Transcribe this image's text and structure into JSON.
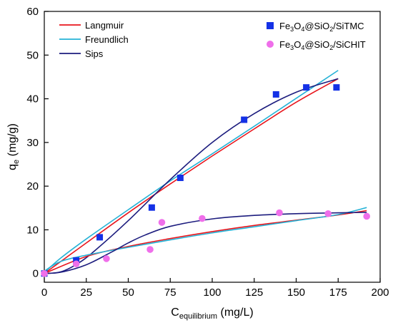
{
  "chart_data": {
    "type": "scatter",
    "xlabel": {
      "main": "C",
      "sub": "equilibrium",
      "unit": " (mg/L)"
    },
    "ylabel": {
      "main": "q",
      "sub": "e",
      "unit": " (mg/g)"
    },
    "xlim": [
      0,
      200
    ],
    "ylim": [
      -2,
      60
    ],
    "xticks": [
      0,
      25,
      50,
      75,
      100,
      125,
      150,
      175,
      200
    ],
    "yticks": [
      0,
      10,
      20,
      30,
      40,
      50,
      60
    ],
    "grid": false,
    "legend_models_position": "top-left",
    "legend_data_position": "top-right",
    "models": [
      {
        "name": "Langmuir",
        "color": "#e8141b"
      },
      {
        "name": "Freundlich",
        "color": "#25b2d6"
      },
      {
        "name": "Sips",
        "color": "#1c1c7e"
      }
    ],
    "series": [
      {
        "name_parts": [
          {
            "t": "Fe",
            "s": "n"
          },
          {
            "t": "3",
            "s": "sub"
          },
          {
            "t": "O",
            "s": "n"
          },
          {
            "t": "4",
            "s": "sub"
          },
          {
            "t": "@SiO",
            "s": "n"
          },
          {
            "t": "2",
            "s": "sub"
          },
          {
            "t": "/SiTMC",
            "s": "n"
          }
        ],
        "marker": "square",
        "color": "#1431e6",
        "x": [
          0,
          19,
          33,
          64,
          81,
          119,
          138,
          156,
          174
        ],
        "y": [
          0,
          3,
          8.3,
          15.1,
          21.9,
          35.2,
          41.0,
          42.6,
          42.6
        ],
        "fits": {
          "Langmuir": {
            "x": [
              0,
              25,
              50,
              75,
              100,
              125,
              150,
              175
            ],
            "y": [
              0,
              7.0,
              13.9,
              20.5,
              26.9,
              33.1,
              39.2,
              44.6
            ]
          },
          "Freundlich": {
            "x": [
              0,
              1,
              10,
              25,
              50,
              75,
              100,
              125,
              150,
              175
            ],
            "y": [
              0,
              0.55,
              3.6,
              7.9,
              14.6,
              21.2,
              27.4,
              33.7,
              40.1,
              46.5
            ]
          },
          "Sips": {
            "x": [
              0,
              10,
              20,
              30,
              50,
              75,
              100,
              125,
              150,
              175
            ],
            "y": [
              0,
              0.4,
              2.3,
              5.2,
              12.1,
              21.5,
              30.0,
              36.6,
              41.5,
              44.6
            ]
          }
        }
      },
      {
        "name_parts": [
          {
            "t": "Fe",
            "s": "n"
          },
          {
            "t": "3",
            "s": "sub"
          },
          {
            "t": "O",
            "s": "n"
          },
          {
            "t": "4",
            "s": "sub"
          },
          {
            "t": "@SiO",
            "s": "n"
          },
          {
            "t": "2",
            "s": "sub"
          },
          {
            "t": "/SiCHIT",
            "s": "n"
          }
        ],
        "marker": "circle",
        "color": "#ef6fea",
        "x": [
          0,
          19,
          37,
          63,
          70,
          94,
          140,
          169,
          192
        ],
        "y": [
          0,
          2.2,
          3.4,
          5.5,
          11.7,
          12.6,
          13.9,
          13.7,
          13.1
        ],
        "fits": {
          "Langmuir": {
            "x": [
              0,
              25,
              50,
              75,
              100,
              125,
              150,
              175,
              192
            ],
            "y": [
              0,
              3.9,
              6.2,
              8.0,
              9.6,
              11.0,
              12.2,
              13.4,
              14.4
            ]
          },
          "Freundlich": {
            "x": [
              0,
              1,
              10,
              25,
              50,
              75,
              100,
              125,
              150,
              175,
              192
            ],
            "y": [
              0,
              0.8,
              2.8,
              4.2,
              6.0,
              7.7,
              9.3,
              10.7,
              12.1,
              13.5,
              15.1
            ]
          },
          "Sips": {
            "x": [
              0,
              10,
              25,
              40,
              50,
              60,
              75,
              100,
              125,
              150,
              175,
              192
            ],
            "y": [
              0,
              0.3,
              2.0,
              4.9,
              7.0,
              8.8,
              10.8,
              12.5,
              13.3,
              13.7,
              13.9,
              14.0
            ]
          }
        }
      }
    ]
  }
}
